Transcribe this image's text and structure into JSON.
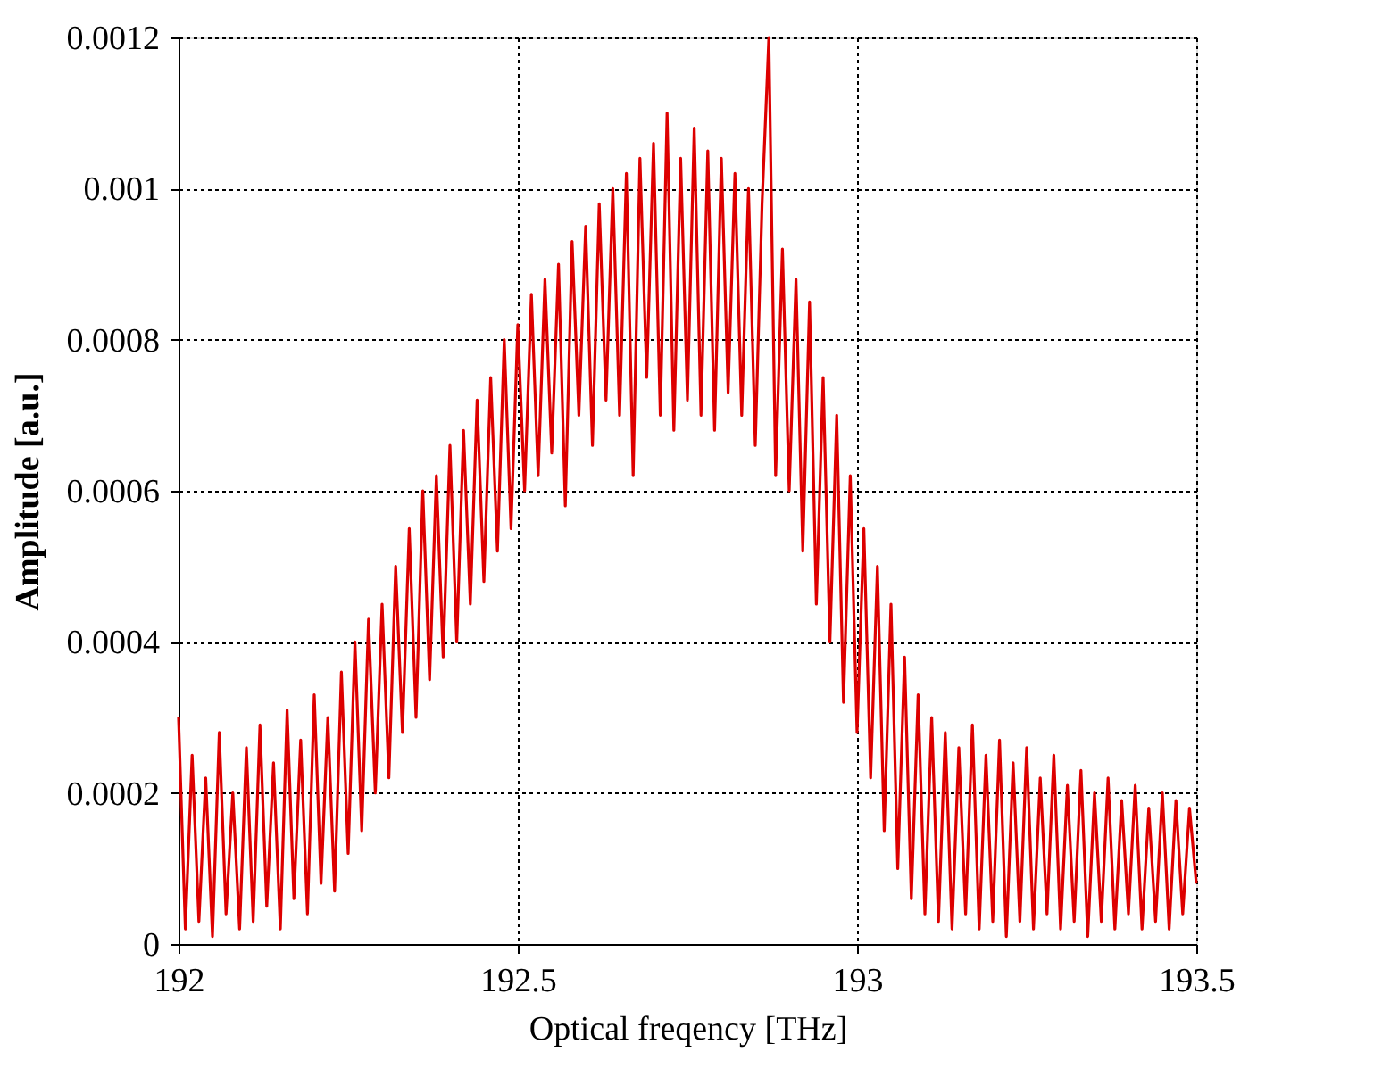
{
  "chart_data": {
    "type": "line",
    "xlabel": "Optical freqency [THz]",
    "ylabel": "Amplitude [a.u.]",
    "xlim": [
      192,
      193.5
    ],
    "xticks": [
      192,
      192.5,
      193,
      193.5
    ],
    "ylim": [
      0,
      0.0012
    ],
    "yticks": [
      0,
      0.0002,
      0.0004,
      0.0006,
      0.0008,
      0.001,
      0.0012
    ],
    "grid": true,
    "marker": "none",
    "line_style": "solid",
    "x": [
      192,
      192.01,
      192.02,
      192.03,
      192.04,
      192.05,
      192.06,
      192.07,
      192.08,
      192.09,
      192.1,
      192.11,
      192.12,
      192.13,
      192.14,
      192.15,
      192.16,
      192.17,
      192.18,
      192.19,
      192.2,
      192.21,
      192.22,
      192.23,
      192.24,
      192.25,
      192.26,
      192.27,
      192.28,
      192.29,
      192.3,
      192.31,
      192.32,
      192.33,
      192.34,
      192.35,
      192.36,
      192.37,
      192.38,
      192.39,
      192.4,
      192.41,
      192.42,
      192.43,
      192.44,
      192.45,
      192.46,
      192.47,
      192.48,
      192.49,
      192.5,
      192.51,
      192.52,
      192.53,
      192.54,
      192.55,
      192.56,
      192.57,
      192.58,
      192.59,
      192.6,
      192.61,
      192.62,
      192.63,
      192.64,
      192.65,
      192.66,
      192.67,
      192.68,
      192.69,
      192.7,
      192.71,
      192.72,
      192.73,
      192.74,
      192.75,
      192.76,
      192.77,
      192.78,
      192.79,
      192.8,
      192.81,
      192.82,
      192.83,
      192.84,
      192.85,
      192.86,
      192.87,
      192.88,
      192.89,
      192.9,
      192.91,
      192.92,
      192.93,
      192.94,
      192.95,
      192.96,
      192.97,
      192.98,
      192.99,
      193,
      193.01,
      193.02,
      193.03,
      193.04,
      193.05,
      193.06,
      193.07,
      193.08,
      193.09,
      193.1,
      193.11,
      193.12,
      193.13,
      193.14,
      193.15,
      193.16,
      193.17,
      193.18,
      193.19,
      193.2,
      193.21,
      193.22,
      193.23,
      193.24,
      193.25,
      193.26,
      193.27,
      193.28,
      193.29,
      193.3,
      193.31,
      193.32,
      193.33,
      193.34,
      193.35,
      193.36,
      193.37,
      193.38,
      193.39,
      193.4,
      193.41,
      193.42,
      193.43,
      193.44,
      193.45,
      193.46,
      193.47,
      193.48,
      193.49,
      193.5
    ],
    "series": [
      {
        "color": "#dd0000",
        "values": [
          0.0003,
          2e-05,
          0.00025,
          3e-05,
          0.00022,
          1e-05,
          0.00028,
          4e-05,
          0.0002,
          2e-05,
          0.00026,
          3e-05,
          0.00029,
          5e-05,
          0.00024,
          2e-05,
          0.00031,
          6e-05,
          0.00027,
          4e-05,
          0.00033,
          8e-05,
          0.0003,
          7e-05,
          0.00036,
          0.00012,
          0.0004,
          0.00015,
          0.00043,
          0.0002,
          0.00045,
          0.00022,
          0.0005,
          0.00028,
          0.00055,
          0.0003,
          0.0006,
          0.00035,
          0.00062,
          0.00038,
          0.00066,
          0.0004,
          0.00068,
          0.00045,
          0.00072,
          0.00048,
          0.00075,
          0.00052,
          0.0008,
          0.00055,
          0.00082,
          0.0006,
          0.00086,
          0.00062,
          0.00088,
          0.00065,
          0.0009,
          0.00058,
          0.00093,
          0.0007,
          0.00095,
          0.00066,
          0.00098,
          0.00072,
          0.001,
          0.0007,
          0.00102,
          0.00062,
          0.00104,
          0.00075,
          0.00106,
          0.0007,
          0.0011,
          0.00068,
          0.00104,
          0.00072,
          0.00108,
          0.0007,
          0.00105,
          0.00068,
          0.00104,
          0.00073,
          0.00102,
          0.0007,
          0.001,
          0.00066,
          0.00098,
          0.0012,
          0.00062,
          0.00092,
          0.0006,
          0.00088,
          0.00052,
          0.00085,
          0.00045,
          0.00075,
          0.0004,
          0.0007,
          0.00032,
          0.00062,
          0.00028,
          0.00055,
          0.00022,
          0.0005,
          0.00015,
          0.00045,
          0.0001,
          0.00038,
          6e-05,
          0.00033,
          4e-05,
          0.0003,
          3e-05,
          0.00028,
          2e-05,
          0.00026,
          4e-05,
          0.00029,
          2e-05,
          0.00025,
          3e-05,
          0.00027,
          1e-05,
          0.00024,
          3e-05,
          0.00026,
          2e-05,
          0.00022,
          4e-05,
          0.00025,
          2e-05,
          0.00021,
          3e-05,
          0.00023,
          1e-05,
          0.0002,
          3e-05,
          0.00022,
          2e-05,
          0.00019,
          4e-05,
          0.00021,
          2e-05,
          0.00018,
          3e-05,
          0.0002,
          2e-05,
          0.00019,
          4e-05,
          0.00018,
          8e-05
        ]
      }
    ]
  }
}
